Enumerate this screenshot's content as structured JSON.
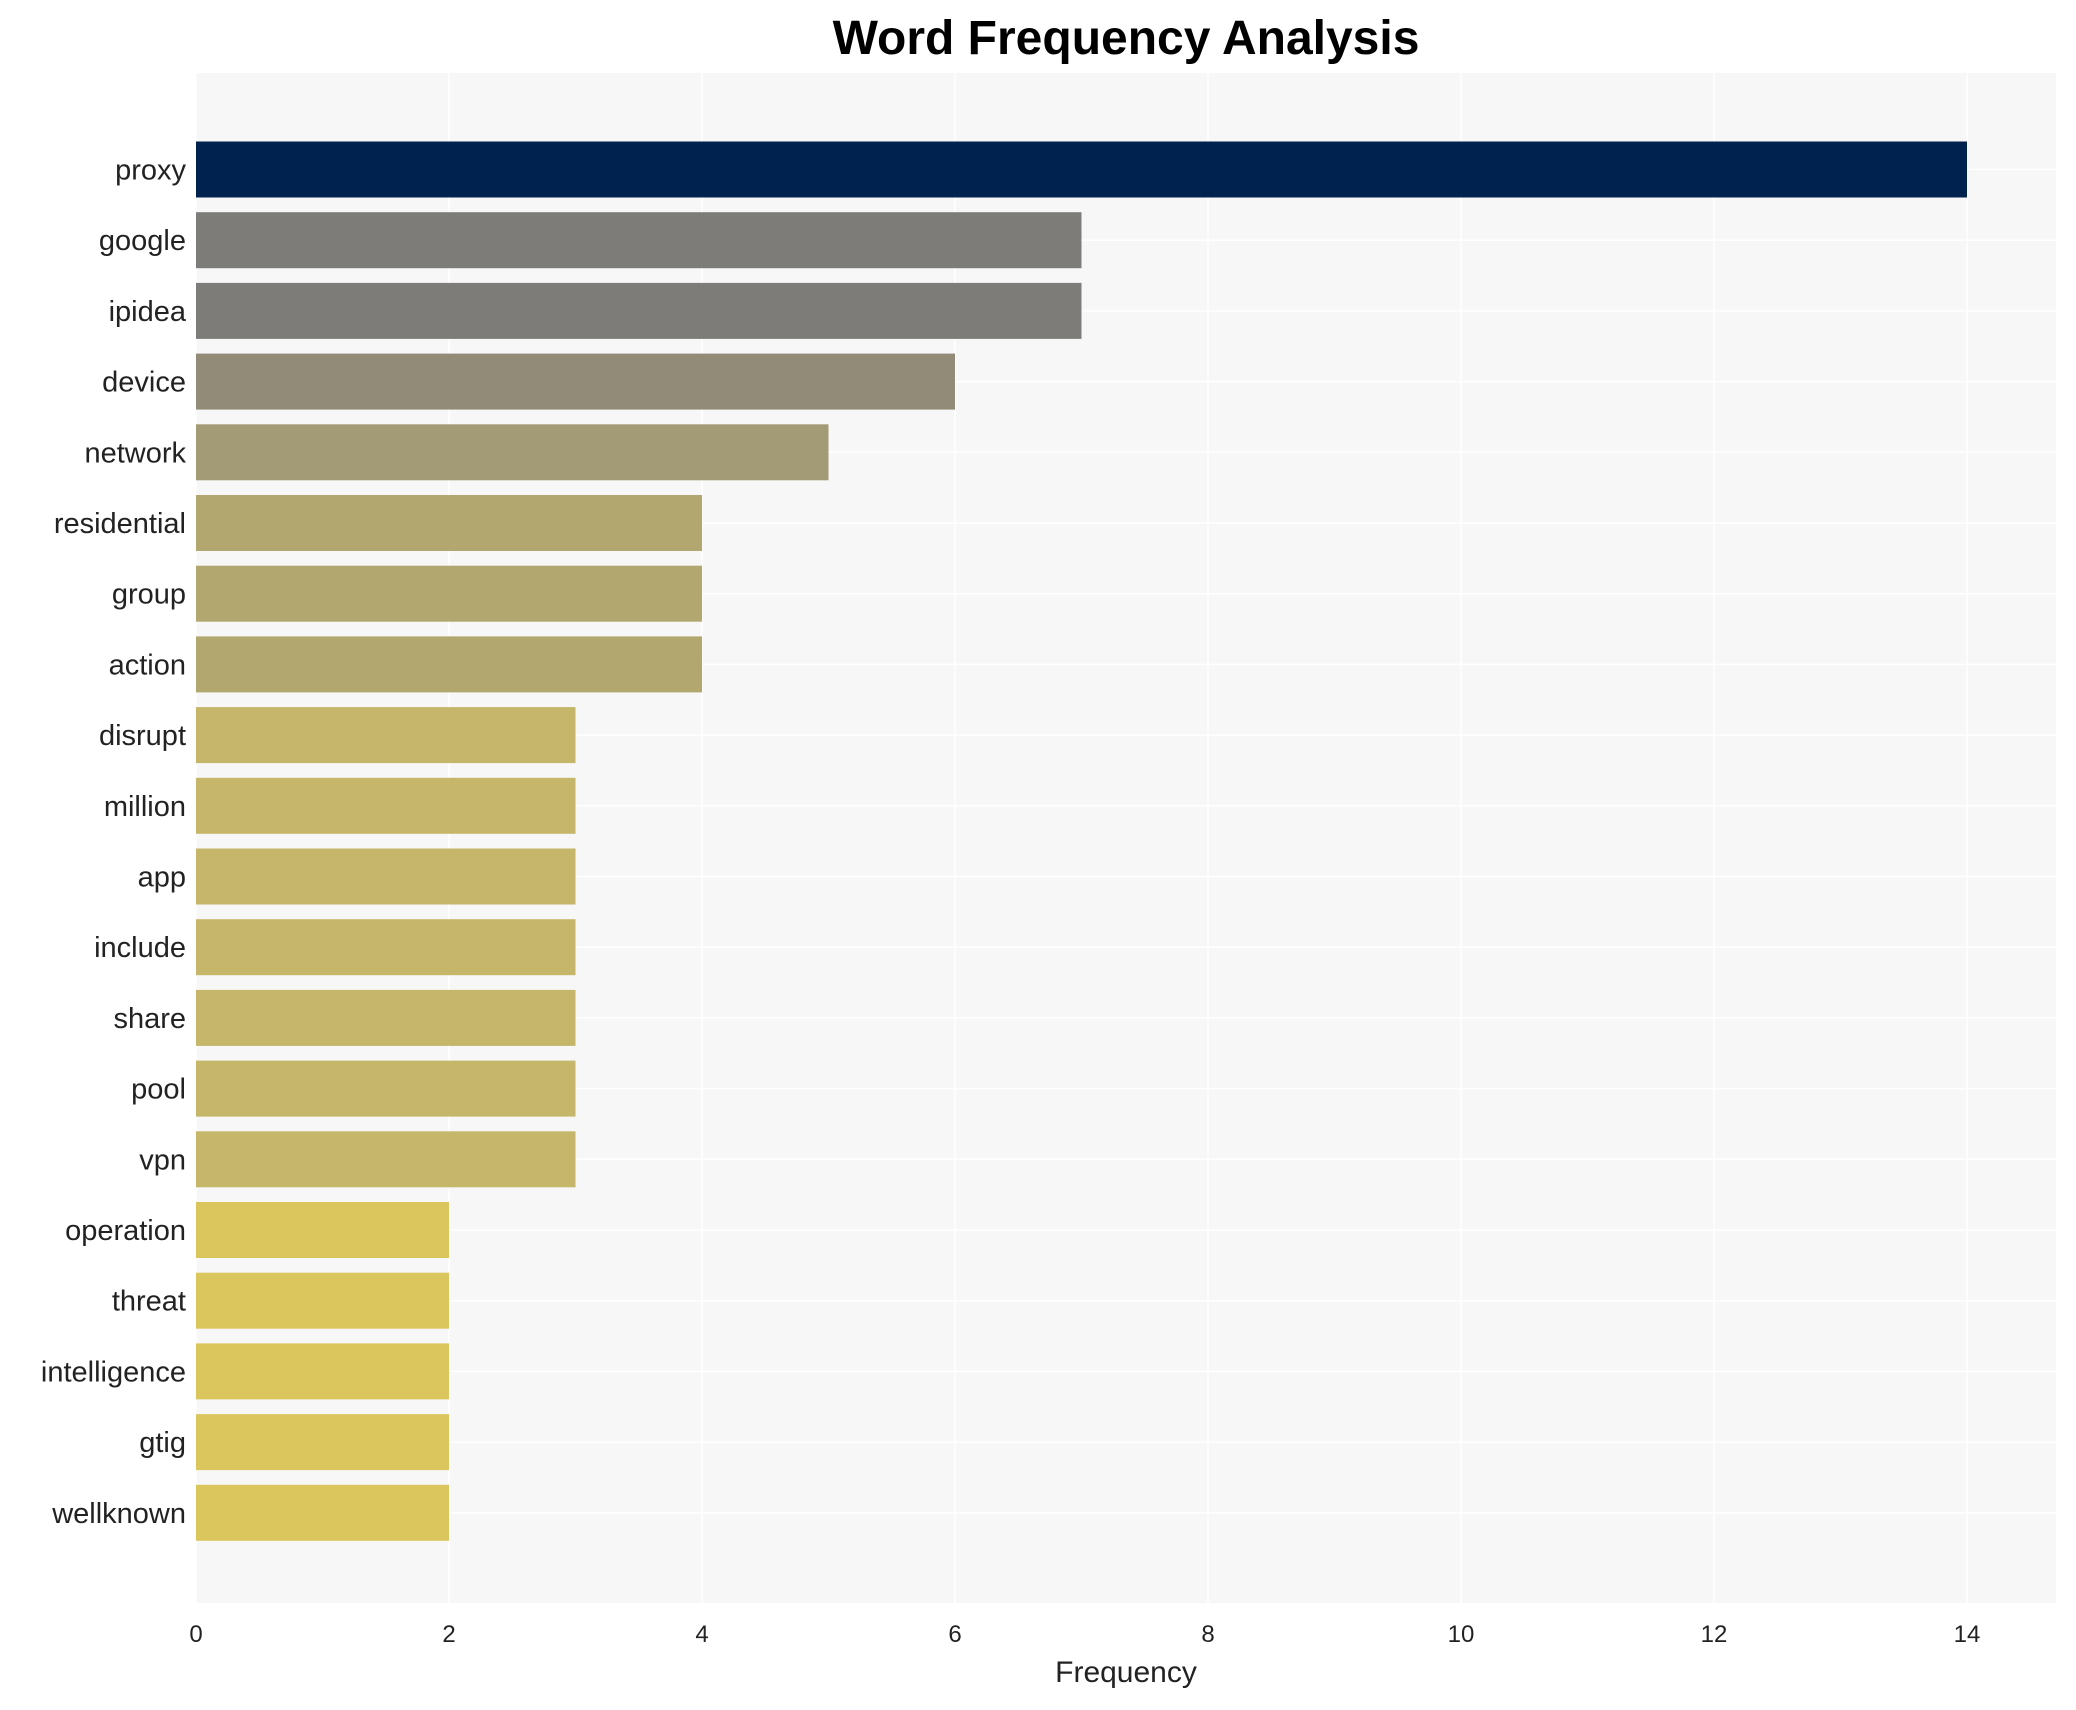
{
  "chart_data": {
    "type": "bar",
    "orientation": "horizontal",
    "title": "Word Frequency Analysis",
    "xlabel": "Frequency",
    "ylabel": "",
    "xlim": [
      0,
      14.7
    ],
    "xticks": [
      0,
      2,
      4,
      6,
      8,
      10,
      12,
      14
    ],
    "grid": true,
    "categories": [
      "proxy",
      "google",
      "ipidea",
      "device",
      "network",
      "residential",
      "group",
      "action",
      "disrupt",
      "million",
      "app",
      "include",
      "share",
      "pool",
      "vpn",
      "operation",
      "threat",
      "intelligence",
      "gtig",
      "wellknown"
    ],
    "values": [
      14,
      7,
      7,
      6,
      5,
      4,
      4,
      4,
      3,
      3,
      3,
      3,
      3,
      3,
      3,
      2,
      2,
      2,
      2,
      2
    ],
    "colors": [
      "#00224e",
      "#7d7c78",
      "#7d7c78",
      "#918b78",
      "#a39a76",
      "#b2a76f",
      "#b2a76f",
      "#b2a76f",
      "#c5b66a",
      "#c5b66a",
      "#c5b66a",
      "#c5b66a",
      "#c5b66a",
      "#c5b66a",
      "#c5b66a",
      "#dbc65e",
      "#dbc65e",
      "#dbc65e",
      "#dbc65e",
      "#dbc65e"
    ]
  }
}
